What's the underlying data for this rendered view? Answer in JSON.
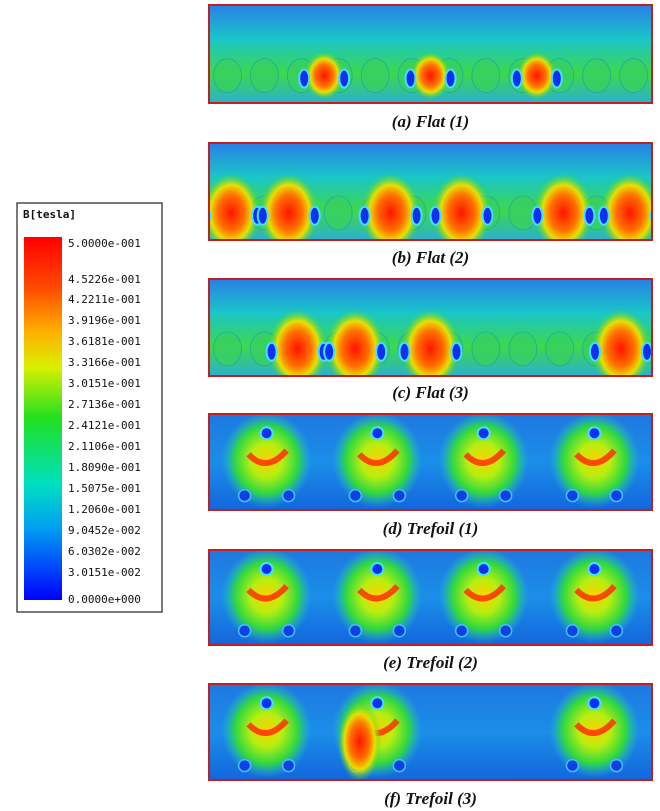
{
  "legend": {
    "title": "B[tesla]",
    "labels": [
      "5.0000e-001",
      "4.5226e-001",
      "4.2211e-001",
      "3.9196e-001",
      "3.6181e-001",
      "3.3166e-001",
      "3.0151e-001",
      "2.7136e-001",
      "2.4121e-001",
      "2.1106e-001",
      "1.8090e-001",
      "1.5075e-001",
      "1.2060e-001",
      "9.0452e-002",
      "6.0302e-002",
      "3.0151e-002",
      "0.0000e+000"
    ]
  },
  "panels": [
    {
      "caption": "(a) Flat (1)"
    },
    {
      "caption": "(b) Flat (2)"
    },
    {
      "caption": "(c) Flat (3)"
    },
    {
      "caption": "(d) Trefoil (1)"
    },
    {
      "caption": "(e) Trefoil (2)"
    },
    {
      "caption": "(f) Trefoil (3)"
    }
  ]
}
